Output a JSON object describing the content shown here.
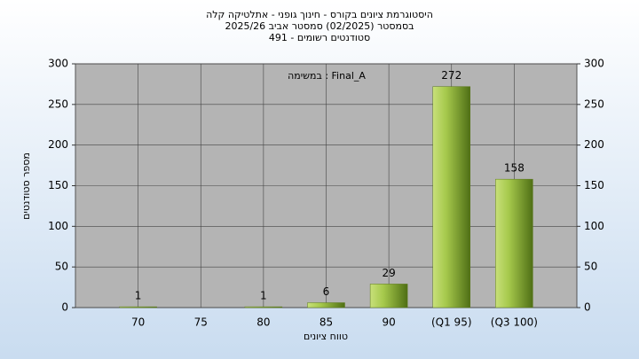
{
  "chart_data": {
    "type": "bar",
    "title": "היסטוגרמת ציונים בקורס - חינוך גופני - אתלטיקה קלה",
    "subtitle": "בסמסטר  (02/2025)  סמסטר אביב 2025/26",
    "subtitle2": "סטודנטים רשומים - 491",
    "annotation": "במשימה : Final_A",
    "x_label": "טווח ציונים",
    "y_label": "מספר סטודנטים",
    "categories": [
      "70",
      "75",
      "80",
      "85",
      "90",
      "(Q1 95)",
      "(Q3 100)"
    ],
    "values": [
      1,
      0,
      1,
      6,
      29,
      272,
      158
    ],
    "color": "#8db43a",
    "ylim": [
      0,
      300
    ],
    "yticks": [
      0,
      50,
      100,
      150,
      200,
      250,
      300
    ],
    "grid": true
  }
}
